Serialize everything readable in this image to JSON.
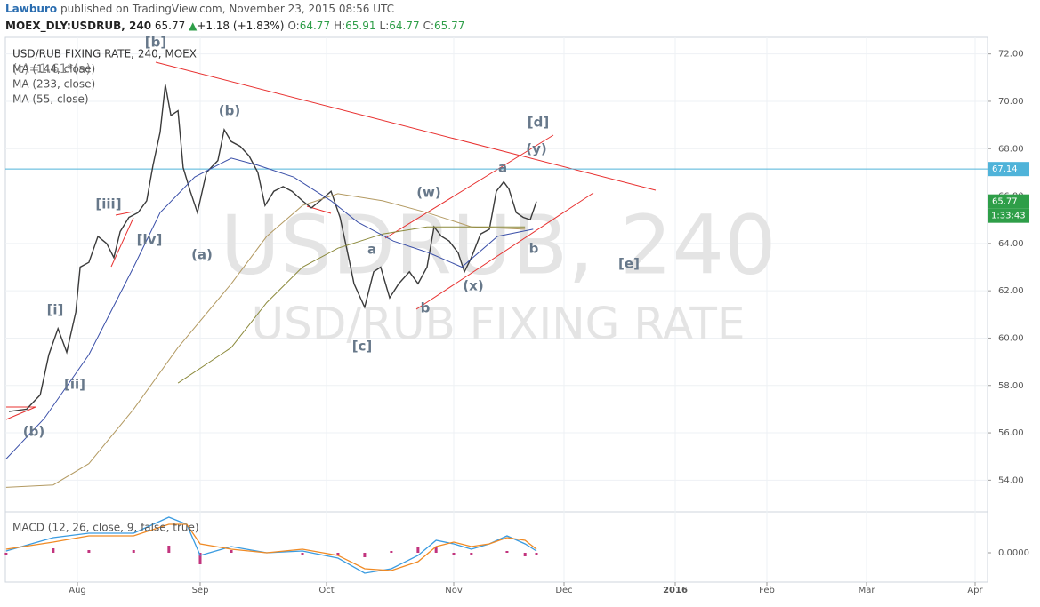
{
  "header": {
    "author": "Lawburo",
    "published": "published on TradingView.com, November 23, 2015 08:56 UTC",
    "symbol": "MOEX_DLY:USDRUB, 240",
    "last": "65.77",
    "change": "+1.18 (+1.83%)",
    "ohlc": [
      {
        "label": "O:",
        "value": "64.77"
      },
      {
        "label": "H:",
        "value": "65.91"
      },
      {
        "label": "L:",
        "value": "64.77"
      },
      {
        "label": "C:",
        "value": "65.77"
      }
    ]
  },
  "chart_data": [
    {
      "type": "line",
      "title": "USD/RUB FIXING RATE, 240, MOEX",
      "study_label": "(c)=1.61*(a)",
      "watermark": [
        "USDRUB, 240",
        "USD/RUB FIXING RATE"
      ],
      "xlim": [
        13,
        278
      ],
      "xticks": [
        {
          "value": 31,
          "label": "Aug"
        },
        {
          "value": 62,
          "label": "Sep"
        },
        {
          "value": 92,
          "label": "Oct"
        },
        {
          "value": 123,
          "label": "Nov"
        },
        {
          "value": 153,
          "label": "Dec"
        },
        {
          "value": 184,
          "label": "2016"
        },
        {
          "value": 215,
          "label": "Feb"
        },
        {
          "value": 244,
          "label": "Mar"
        },
        {
          "value": 275,
          "label": "Apr"
        }
      ],
      "ylim": [
        52.7,
        72.7
      ],
      "yticks": [
        {
          "value": 54,
          "label": "54.00"
        },
        {
          "value": 56,
          "label": "56.00"
        },
        {
          "value": 58,
          "label": "58.00"
        },
        {
          "value": 60,
          "label": "60.00"
        },
        {
          "value": 62,
          "label": "62.00"
        },
        {
          "value": 64,
          "label": "64.00"
        },
        {
          "value": 66,
          "label": "66.00"
        },
        {
          "value": 68,
          "label": "68.00"
        },
        {
          "value": 70,
          "label": "70.00"
        },
        {
          "value": 72,
          "label": "72.00"
        }
      ],
      "grid": true,
      "series": [
        {
          "color": "#3b3b3b",
          "x": [
            13.7,
            18.2,
            21.6,
            23.8,
            26.1,
            28.3,
            30.6,
            31.7,
            33.9,
            36.2,
            38.4,
            40.2,
            41.8,
            44.0,
            46.3,
            48.5,
            50.1,
            51.9,
            53.2,
            54.6,
            56.4,
            57.7,
            59.5,
            61.3,
            63.5,
            66.2,
            67.7,
            69.4,
            71.5,
            73.6,
            75.7,
            77.4,
            79.5,
            81.7,
            83.8,
            86.3,
            88.4,
            90.5,
            93.1,
            95.3,
            97.4,
            98.7,
            101.3,
            103.5,
            105.2,
            107.4,
            109.6,
            112.2,
            114.3,
            116.5,
            118.2,
            120.0,
            121.9,
            124.2,
            125.9,
            127.8,
            130.3,
            132.7,
            134.6,
            136.6,
            138.0,
            140.0,
            141.9,
            143.8,
            145.5
          ],
          "values": [
            56.9,
            57.0,
            57.6,
            59.3,
            60.4,
            59.4,
            61.1,
            63.0,
            63.2,
            64.3,
            64.0,
            63.4,
            64.5,
            65.1,
            65.3,
            65.8,
            67.3,
            68.7,
            70.7,
            69.4,
            69.6,
            67.2,
            66.2,
            65.3,
            67.0,
            67.5,
            68.8,
            68.3,
            68.1,
            67.7,
            67.0,
            65.6,
            66.2,
            66.4,
            66.2,
            65.8,
            65.5,
            65.8,
            66.2,
            65.1,
            63.4,
            62.3,
            61.3,
            62.8,
            63.0,
            61.7,
            62.3,
            62.8,
            62.3,
            63.0,
            64.7,
            64.3,
            64.1,
            63.6,
            62.8,
            63.4,
            64.4,
            64.6,
            66.2,
            66.6,
            66.3,
            65.3,
            65.1,
            65.0,
            65.77
          ]
        },
        {
          "name": "MA (144, close)",
          "color": "#b39a62",
          "x": [
            13.0,
            24.9,
            33.9,
            45.2,
            56.4,
            69.4,
            77.8,
            86.3,
            94.8,
            105.7,
            116.5,
            127.8,
            142.4
          ],
          "values": [
            53.7,
            53.8,
            54.7,
            57.0,
            59.6,
            62.3,
            64.3,
            65.6,
            66.1,
            65.8,
            65.3,
            64.7,
            64.6
          ]
        },
        {
          "name": "MA (233, close)",
          "color": "#8c8a3c",
          "x": [
            56.4,
            69.4,
            77.8,
            86.3,
            94.8,
            105.7,
            116.5,
            127.8,
            142.4
          ],
          "values": [
            58.1,
            59.6,
            61.5,
            63.0,
            63.8,
            64.4,
            64.7,
            64.7,
            64.7
          ]
        },
        {
          "name": "MA (55, close)",
          "color": "#3a4fa8",
          "x": [
            13.0,
            22.6,
            33.9,
            45.2,
            51.9,
            60.6,
            69.4,
            75.7,
            84.2,
            93.1,
            99.6,
            108.3,
            117.0,
            125.2,
            134.9,
            144.6
          ],
          "values": [
            54.9,
            56.6,
            59.3,
            63.0,
            65.3,
            66.8,
            67.6,
            67.3,
            66.8,
            65.8,
            64.9,
            64.1,
            63.6,
            63.0,
            64.3,
            64.6
          ]
        }
      ],
      "price_lines": [
        {
          "value": 67.14,
          "label": "67.14",
          "color": "#4fb3d9"
        },
        {
          "value": 65.77,
          "label": "65.77",
          "color": "#2e9e48"
        }
      ],
      "countdown": "1:33:43",
      "annotations": [
        "[b]",
        "(b)",
        "[d]",
        "(y)",
        "a",
        "(w)",
        "[iii]",
        "[iv]",
        "(a)",
        "a",
        "b",
        "[e]",
        "(x)",
        "b",
        "[i]",
        "[c]",
        "[ii]",
        "(b)"
      ]
    },
    {
      "type": "macd",
      "title": "MACD (12, 26, close, 9, false, true)",
      "x": [
        13.0,
        24.9,
        33.9,
        45.2,
        54.1,
        58.6,
        62,
        69.4,
        77.8,
        86.3,
        94.8,
        101.3,
        107.8,
        114.3,
        118.7,
        123,
        127.8,
        132.7,
        137.5,
        142.4,
        145.5
      ],
      "ylim": [
        -0.66,
        0.88
      ],
      "yticks": [
        {
          "value": 0,
          "label": "0.0000"
        }
      ],
      "series": [
        {
          "color": "#c2347e",
          "kind": "histogram",
          "values": [
            -0.04,
            0.1,
            0.06,
            0.06,
            0.16,
            0,
            -0.26,
            0.06,
            0,
            -0.04,
            -0.06,
            -0.1,
            0.04,
            0.14,
            0.14,
            -0.04,
            -0.06,
            0,
            0.04,
            -0.08,
            -0.04
          ]
        },
        {
          "color": "#3a9be0",
          "kind": "line",
          "values": [
            0.04,
            0.34,
            0.44,
            0.44,
            0.8,
            0.64,
            -0.06,
            0.14,
            0,
            0.04,
            -0.12,
            -0.46,
            -0.36,
            -0.06,
            0.28,
            0.2,
            0.08,
            0.2,
            0.38,
            0.2,
            0.04
          ]
        },
        {
          "color": "#f08a24",
          "kind": "line",
          "values": [
            0.08,
            0.24,
            0.38,
            0.38,
            0.64,
            0.64,
            0.2,
            0.08,
            0,
            0.08,
            -0.06,
            -0.36,
            -0.4,
            -0.2,
            0.14,
            0.24,
            0.14,
            0.2,
            0.34,
            0.28,
            0.08
          ]
        }
      ]
    }
  ]
}
